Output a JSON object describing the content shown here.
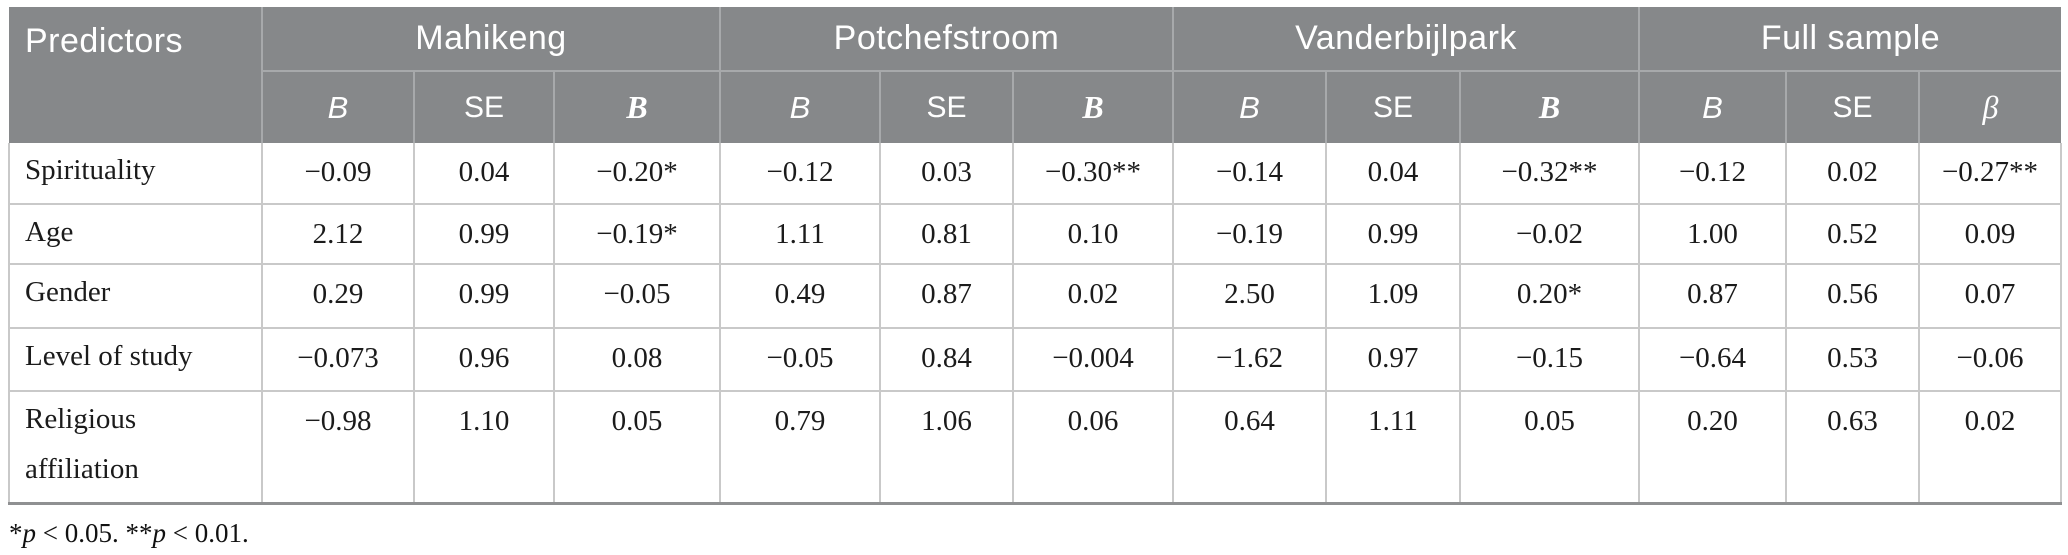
{
  "colors": {
    "header_bg": "#86888a",
    "header_text": "#ffffff",
    "header_grid_line": "#a7a9ab",
    "body_grid_line": "#c9c9c9",
    "table_bottom_line": "#8f9092",
    "body_text": "#1b1b1b"
  },
  "table": {
    "corner_header": "Predictors",
    "groups": [
      {
        "label": "Mahikeng"
      },
      {
        "label": "Potchefstroom"
      },
      {
        "label": "Vanderbijlpark"
      },
      {
        "label": "Full sample"
      }
    ],
    "subheaders": [
      {
        "label": "B"
      },
      {
        "label": "SE"
      },
      {
        "label": "B"
      },
      {
        "label": "B"
      },
      {
        "label": "SE"
      },
      {
        "label": "B"
      },
      {
        "label": "B"
      },
      {
        "label": "SE"
      },
      {
        "label": "B"
      },
      {
        "label": "B"
      },
      {
        "label": "SE"
      },
      {
        "label": "β"
      }
    ],
    "rows": [
      {
        "predictor": "Spirituality",
        "values": [
          "−0.09",
          "0.04",
          "−0.20*",
          "−0.12",
          "0.03",
          "−0.30**",
          "−0.14",
          "0.04",
          "−0.32**",
          "−0.12",
          "0.02",
          "−0.27**"
        ]
      },
      {
        "predictor": "Age",
        "values": [
          "2.12",
          "0.99",
          "−0.19*",
          "1.11",
          "0.81",
          "0.10",
          "−0.19",
          "0.99",
          "−0.02",
          "1.00",
          "0.52",
          "0.09"
        ]
      },
      {
        "predictor": "Gender",
        "values": [
          "0.29",
          "0.99",
          "−0.05",
          "0.49",
          "0.87",
          "0.02",
          "2.50",
          "1.09",
          "0.20*",
          "0.87",
          "0.56",
          "0.07"
        ]
      },
      {
        "predictor": "Level of study",
        "values": [
          "−0.073",
          "0.96",
          "0.08",
          "−0.05",
          "0.84",
          "−0.004",
          "−1.62",
          "0.97",
          "−0.15",
          "−0.64",
          "0.53",
          "−0.06"
        ]
      },
      {
        "predictor": "Religious affiliation",
        "values": [
          "−0.98",
          "1.10",
          "0.05",
          "0.79",
          "1.06",
          "0.06",
          "0.64",
          "1.11",
          "0.05",
          "0.20",
          "0.63",
          "0.02"
        ]
      }
    ],
    "footnote": {
      "parts": [
        {
          "text": "*"
        },
        {
          "text": "p"
        },
        {
          "text": " < 0.05. **"
        },
        {
          "text": "p"
        },
        {
          "text": " < 0.01."
        }
      ]
    }
  }
}
